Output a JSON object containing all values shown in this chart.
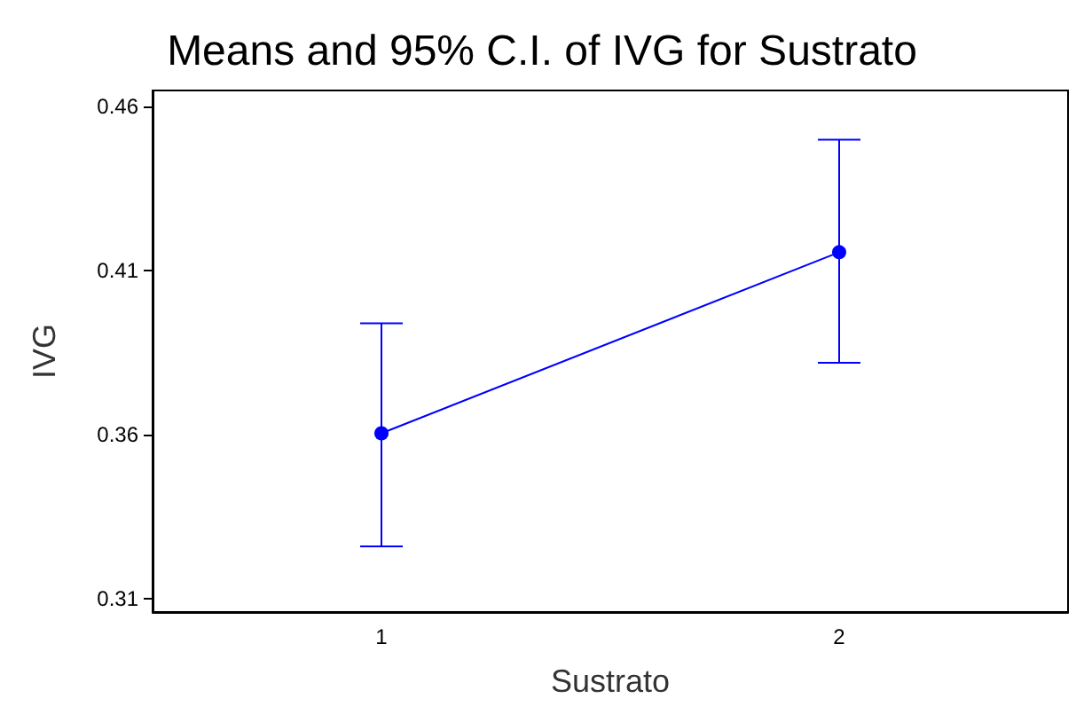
{
  "chart_data": {
    "type": "line",
    "title": "Means and 95% C.I. of IVG for Sustrato",
    "xlabel": "Sustrato",
    "ylabel": "IVG",
    "categories": [
      "1",
      "2"
    ],
    "series": [
      {
        "color": "#0000ff",
        "values": [
          0.3605,
          0.4157
        ],
        "errors": [
          [
            0.326,
            0.394
          ],
          [
            0.382,
            0.45
          ]
        ]
      }
    ],
    "ylim": [
      0.306,
      0.465
    ],
    "yticks": [
      0.31,
      0.36,
      0.41,
      0.46
    ],
    "grid": false,
    "marker": "circle",
    "line_style": "solid"
  }
}
